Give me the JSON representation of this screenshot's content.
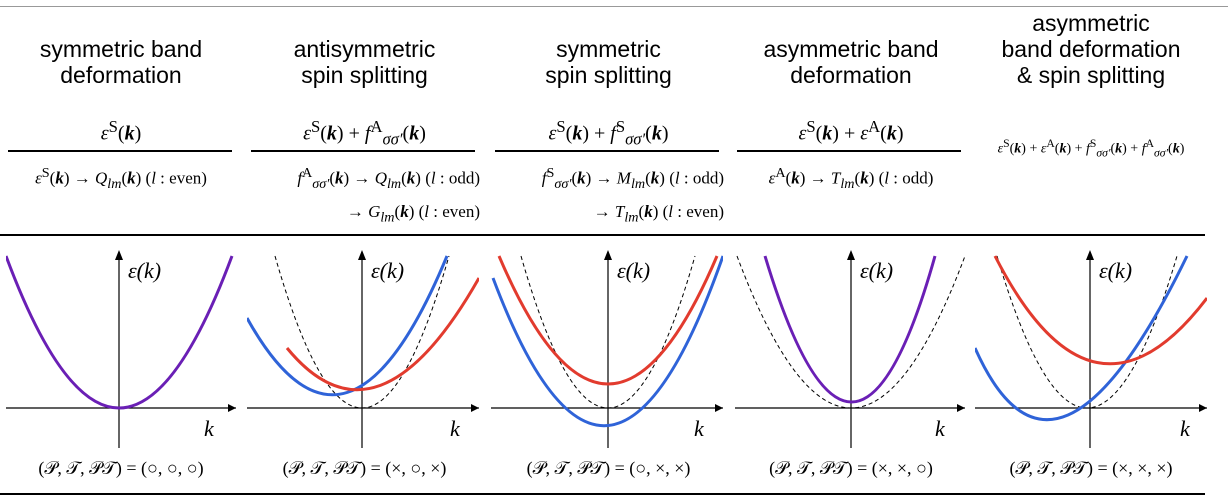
{
  "columns": [
    {
      "title_lines": [
        "symmetric band",
        "deformation"
      ],
      "equation": "εS(k)",
      "decomposition": [
        "εS(k) → Qlm(k) (l : even)"
      ],
      "symmetry": "(𝒫, 𝒯, 𝒫𝒯) = (○, ○, ○)",
      "curves": [
        "purple"
      ]
    },
    {
      "title_lines": [
        "antisymmetric",
        "spin splitting"
      ],
      "equation": "εS(k) + fAσσ′(k)",
      "decomposition": [
        "fAσσ′(k) → Qlm(k) (l : odd)",
        "→ Glm(k) (l : even)"
      ],
      "symmetry": "(𝒫, 𝒯, 𝒫𝒯) = (×, ○, ×)",
      "curves": [
        "blue",
        "red",
        "dashed"
      ]
    },
    {
      "title_lines": [
        "symmetric",
        "spin splitting"
      ],
      "equation": "εS(k) + fSσσ′(k)",
      "decomposition": [
        "fSσσ′(k) → Mlm(k) (l : odd)",
        "→ Tlm(k) (l : even)"
      ],
      "symmetry": "(𝒫, 𝒯, 𝒫𝒯) = (○, ×, ×)",
      "curves": [
        "red",
        "blue",
        "dashed"
      ]
    },
    {
      "title_lines": [
        "asymmetric band",
        "deformation"
      ],
      "equation": "εS(k) + εA(k)",
      "decomposition": [
        "εA(k) → Tlm(k) (l : odd)"
      ],
      "symmetry": "(𝒫, 𝒯, 𝒫𝒯) = (×, ×, ○)",
      "curves": [
        "purple",
        "dashed"
      ]
    },
    {
      "title_lines": [
        "asymmetric",
        "band deformation",
        "& spin splitting"
      ],
      "equation": "εS(k) + εA(k) + fSσσ′(k) + fAσσ′(k)",
      "decomposition": [],
      "symmetry": "(𝒫, 𝒯, 𝒫𝒯) = (×, ×, ×)",
      "curves": [
        "red",
        "blue",
        "dashed"
      ]
    }
  ],
  "axes": {
    "y_label": "ε(k)",
    "x_label": "k"
  },
  "colors": {
    "purple": "#6a1fb5",
    "blue": "#2f63d8",
    "red": "#e23b2e",
    "dashed": "#000000"
  }
}
